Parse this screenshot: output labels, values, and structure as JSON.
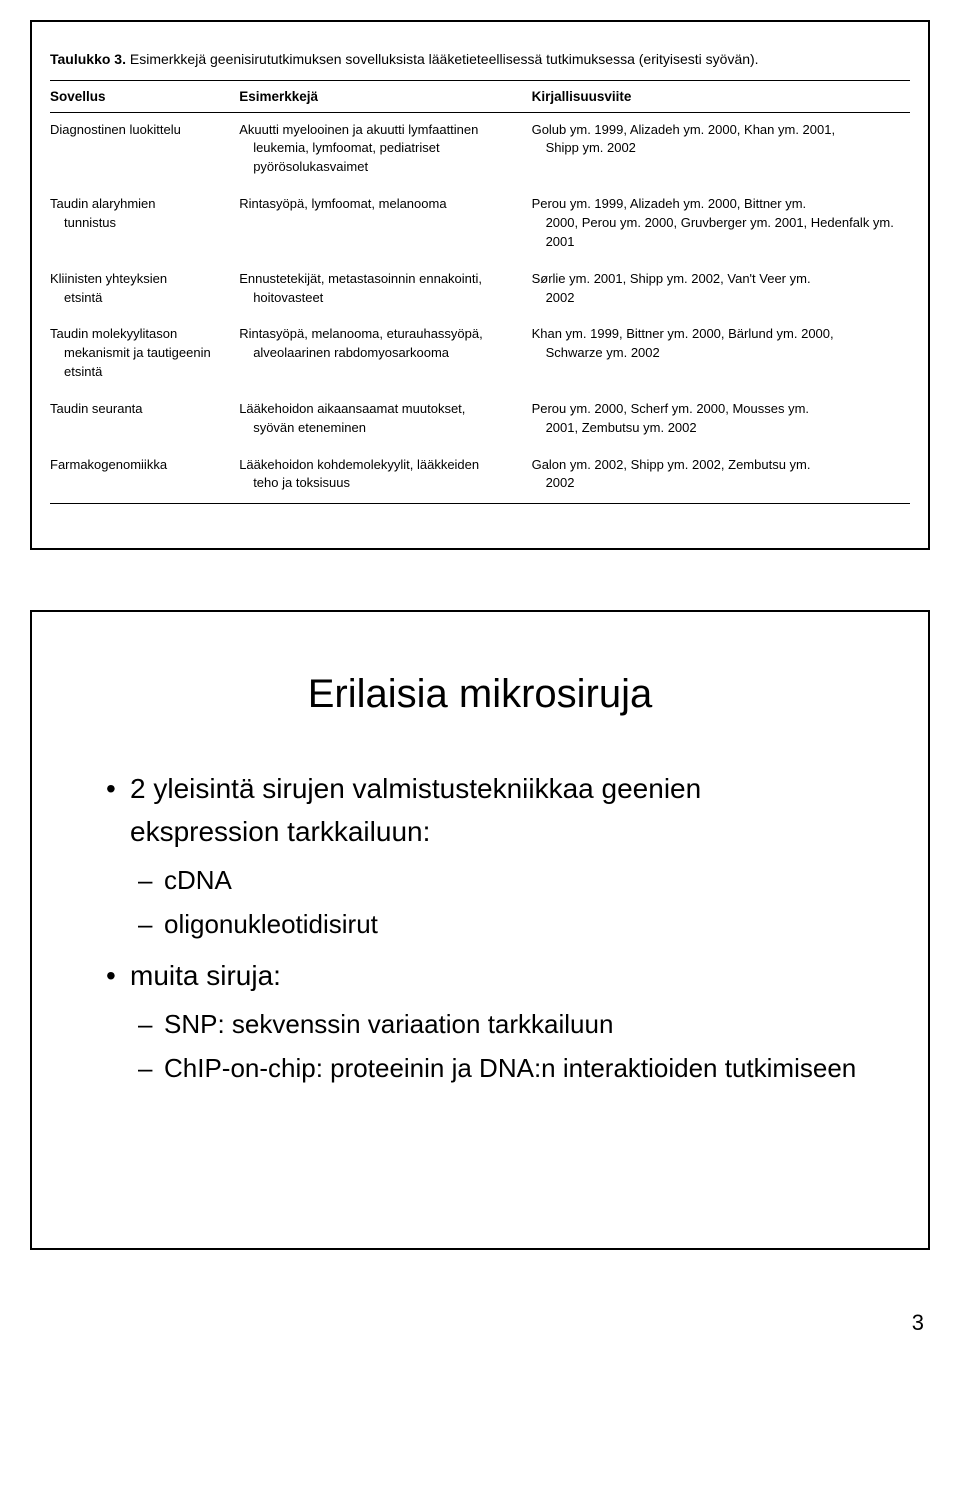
{
  "slide1": {
    "caption_bold": "Taulukko 3.",
    "caption_rest": " Esimerkkejä geenisirututkimuksen sovelluksista lääketieteellisessä tutkimuksessa (erityisesti syövän).",
    "headers": {
      "c1": "Sovellus",
      "c2": "Esimerkkejä",
      "c3": "Kirjallisuusviite"
    },
    "rows": [
      {
        "c1a": "Diagnostinen luokittelu",
        "c1b": "",
        "c2a": "Akuutti myelooinen ja akuutti lymfaattinen",
        "c2b": "leukemia, lymfoomat, pediatriset pyörösolukasvaimet",
        "c3a": "Golub ym. 1999, Alizadeh ym. 2000, Khan ym. 2001,",
        "c3b": "Shipp ym. 2002"
      },
      {
        "c1a": "Taudin alaryhmien",
        "c1b": "tunnistus",
        "c2a": "Rintasyöpä, lymfoomat, melanooma",
        "c2b": "",
        "c3a": "Perou ym. 1999, Alizadeh ym. 2000, Bittner ym.",
        "c3b": "2000, Perou ym. 2000, Gruvberger ym. 2001, Hedenfalk ym. 2001"
      },
      {
        "c1a": "Kliinisten yhteyksien",
        "c1b": "etsintä",
        "c2a": "Ennustetekijät, metastasoinnin ennakointi,",
        "c2b": "hoitovasteet",
        "c3a": "Sørlie ym. 2001, Shipp ym. 2002, Van't Veer ym.",
        "c3b": "2002"
      },
      {
        "c1a": "Taudin molekyylitason",
        "c1b": "mekanismit ja tautigeenin etsintä",
        "c2a": "Rintasyöpä, melanooma, eturauhassyöpä,",
        "c2b": "alveolaarinen rabdomyosarkooma",
        "c3a": "Khan ym. 1999, Bittner ym. 2000, Bärlund ym. 2000,",
        "c3b": "Schwarze ym. 2002"
      },
      {
        "c1a": "Taudin seuranta",
        "c1b": "",
        "c2a": "Lääkehoidon aikaansaamat muutokset,",
        "c2b": "syövän eteneminen",
        "c3a": "Perou ym. 2000, Scherf ym. 2000, Mousses ym.",
        "c3b": "2001, Zembutsu ym. 2002"
      },
      {
        "c1a": "Farmakogenomiikka",
        "c1b": "",
        "c2a": "Lääkehoidon kohdemolekyylit, lääkkeiden",
        "c2b": "teho ja toksisuus",
        "c3a": "Galon ym. 2002, Shipp ym. 2002, Zembutsu ym.",
        "c3b": "2002"
      }
    ]
  },
  "slide2": {
    "title": "Erilaisia mikrosiruja",
    "b1": "2 yleisintä sirujen valmistustekniikkaa geenien ekspression tarkkailuun:",
    "b1s1": "cDNA",
    "b1s2": "oligonukleotidisirut",
    "b2": "muita siruja:",
    "b2s1": "SNP: sekvenssin variaation tarkkailuun",
    "b2s2": "ChIP-on-chip: proteeinin ja DNA:n interaktioiden tutkimiseen"
  },
  "pagenum": "3"
}
